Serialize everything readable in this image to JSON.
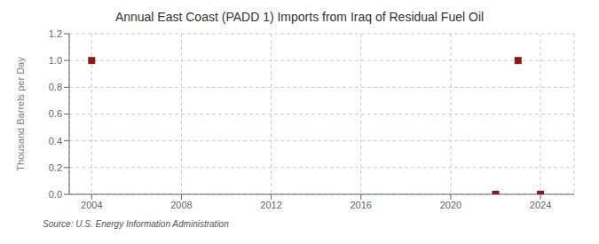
{
  "chart_data": {
    "type": "scatter",
    "title": "Annual East Coast (PADD 1) Imports from Iraq of Residual Fuel Oil",
    "ylabel": "Thousand Barrels per Day",
    "annotations": [
      "Source: U.S. Energy Information Administration"
    ],
    "x": [
      2004,
      2022,
      2023,
      2024
    ],
    "values": [
      1.0,
      0.0,
      1.0,
      0.0
    ],
    "color": "#8b1a1a",
    "marker": "square",
    "xlim": [
      2003.0,
      2025.5
    ],
    "ylim": [
      0.0,
      1.2
    ],
    "xticks": [
      2004,
      2008,
      2012,
      2016,
      2020,
      2024
    ],
    "yticks": [
      {
        "value": 0.0,
        "label": "0.0"
      },
      0.2,
      0.4,
      0.6,
      0.8,
      {
        "value": 1.0,
        "label": "1.0"
      },
      1.2
    ],
    "grid": true
  }
}
